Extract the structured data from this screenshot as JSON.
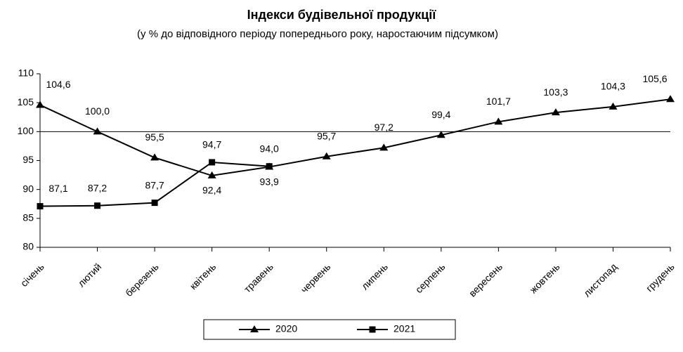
{
  "chart_data": {
    "type": "line",
    "title": "Індекси будівельної продукції",
    "subtitle": "(у % до відповідного періоду попереднього року, наростаючим підсумком)",
    "categories": [
      "січень",
      "лютий",
      "березень",
      "квітень",
      "травень",
      "червень",
      "липень",
      "серпень",
      "вересень",
      "жовтень",
      "листопад",
      "грудень"
    ],
    "series": [
      {
        "name": "2020",
        "color": "#000000",
        "marker": "triangle",
        "values": [
          104.6,
          100.0,
          95.5,
          92.4,
          93.9,
          95.7,
          97.2,
          99.4,
          101.7,
          103.3,
          104.3,
          105.6
        ],
        "value_labels": [
          "104,6",
          "100,0",
          "95,5",
          "92,4",
          "93,9",
          "95,7",
          "97,2",
          "99,4",
          "101,7",
          "103,3",
          "104,3",
          "105,6"
        ]
      },
      {
        "name": "2021",
        "color": "#000000",
        "marker": "square",
        "values": [
          87.1,
          87.2,
          87.7,
          94.7,
          94.0,
          null,
          null,
          null,
          null,
          null,
          null,
          null
        ],
        "value_labels": [
          "87,1",
          "87,2",
          "87,7",
          "94,7",
          "94,0",
          null,
          null,
          null,
          null,
          null,
          null,
          null
        ]
      }
    ],
    "ylim": [
      80,
      110
    ],
    "yticks": [
      80,
      85,
      90,
      95,
      100,
      105,
      110
    ],
    "reference_line": 100,
    "grid": false,
    "legend": "bottom"
  }
}
